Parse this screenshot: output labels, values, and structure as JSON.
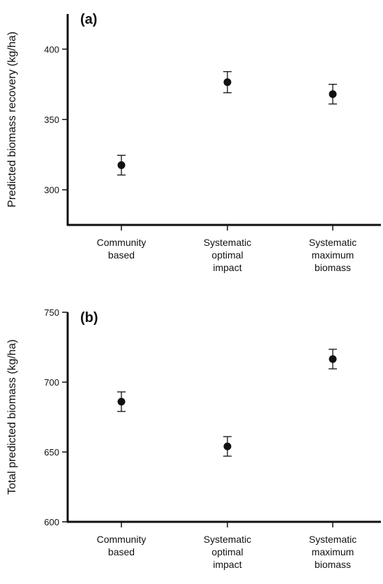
{
  "chart_data": [
    {
      "type": "errorbar",
      "title": "(a)",
      "y_label": "Predicted biomass recovery (kg/ha)",
      "categories": [
        "Community based",
        "Systematic optimal impact",
        "Systematic maximum biomass"
      ],
      "values": [
        317.5,
        376.5,
        368
      ],
      "errors": [
        7,
        7.5,
        7
      ],
      "color": "#111111",
      "ylim": [
        275,
        425
      ],
      "yticks": [
        300,
        350,
        400
      ]
    },
    {
      "type": "errorbar",
      "title": "(b)",
      "y_label": "Total predicted biomass (kg/ha)",
      "categories": [
        "Community based",
        "Systematic optimal impact",
        "Systematic maximum biomass"
      ],
      "values": [
        686,
        654,
        716.5
      ],
      "errors": [
        7,
        7,
        7
      ],
      "color": "#111111",
      "ylim": [
        600,
        750
      ],
      "yticks": [
        600,
        650,
        700,
        750
      ]
    }
  ]
}
